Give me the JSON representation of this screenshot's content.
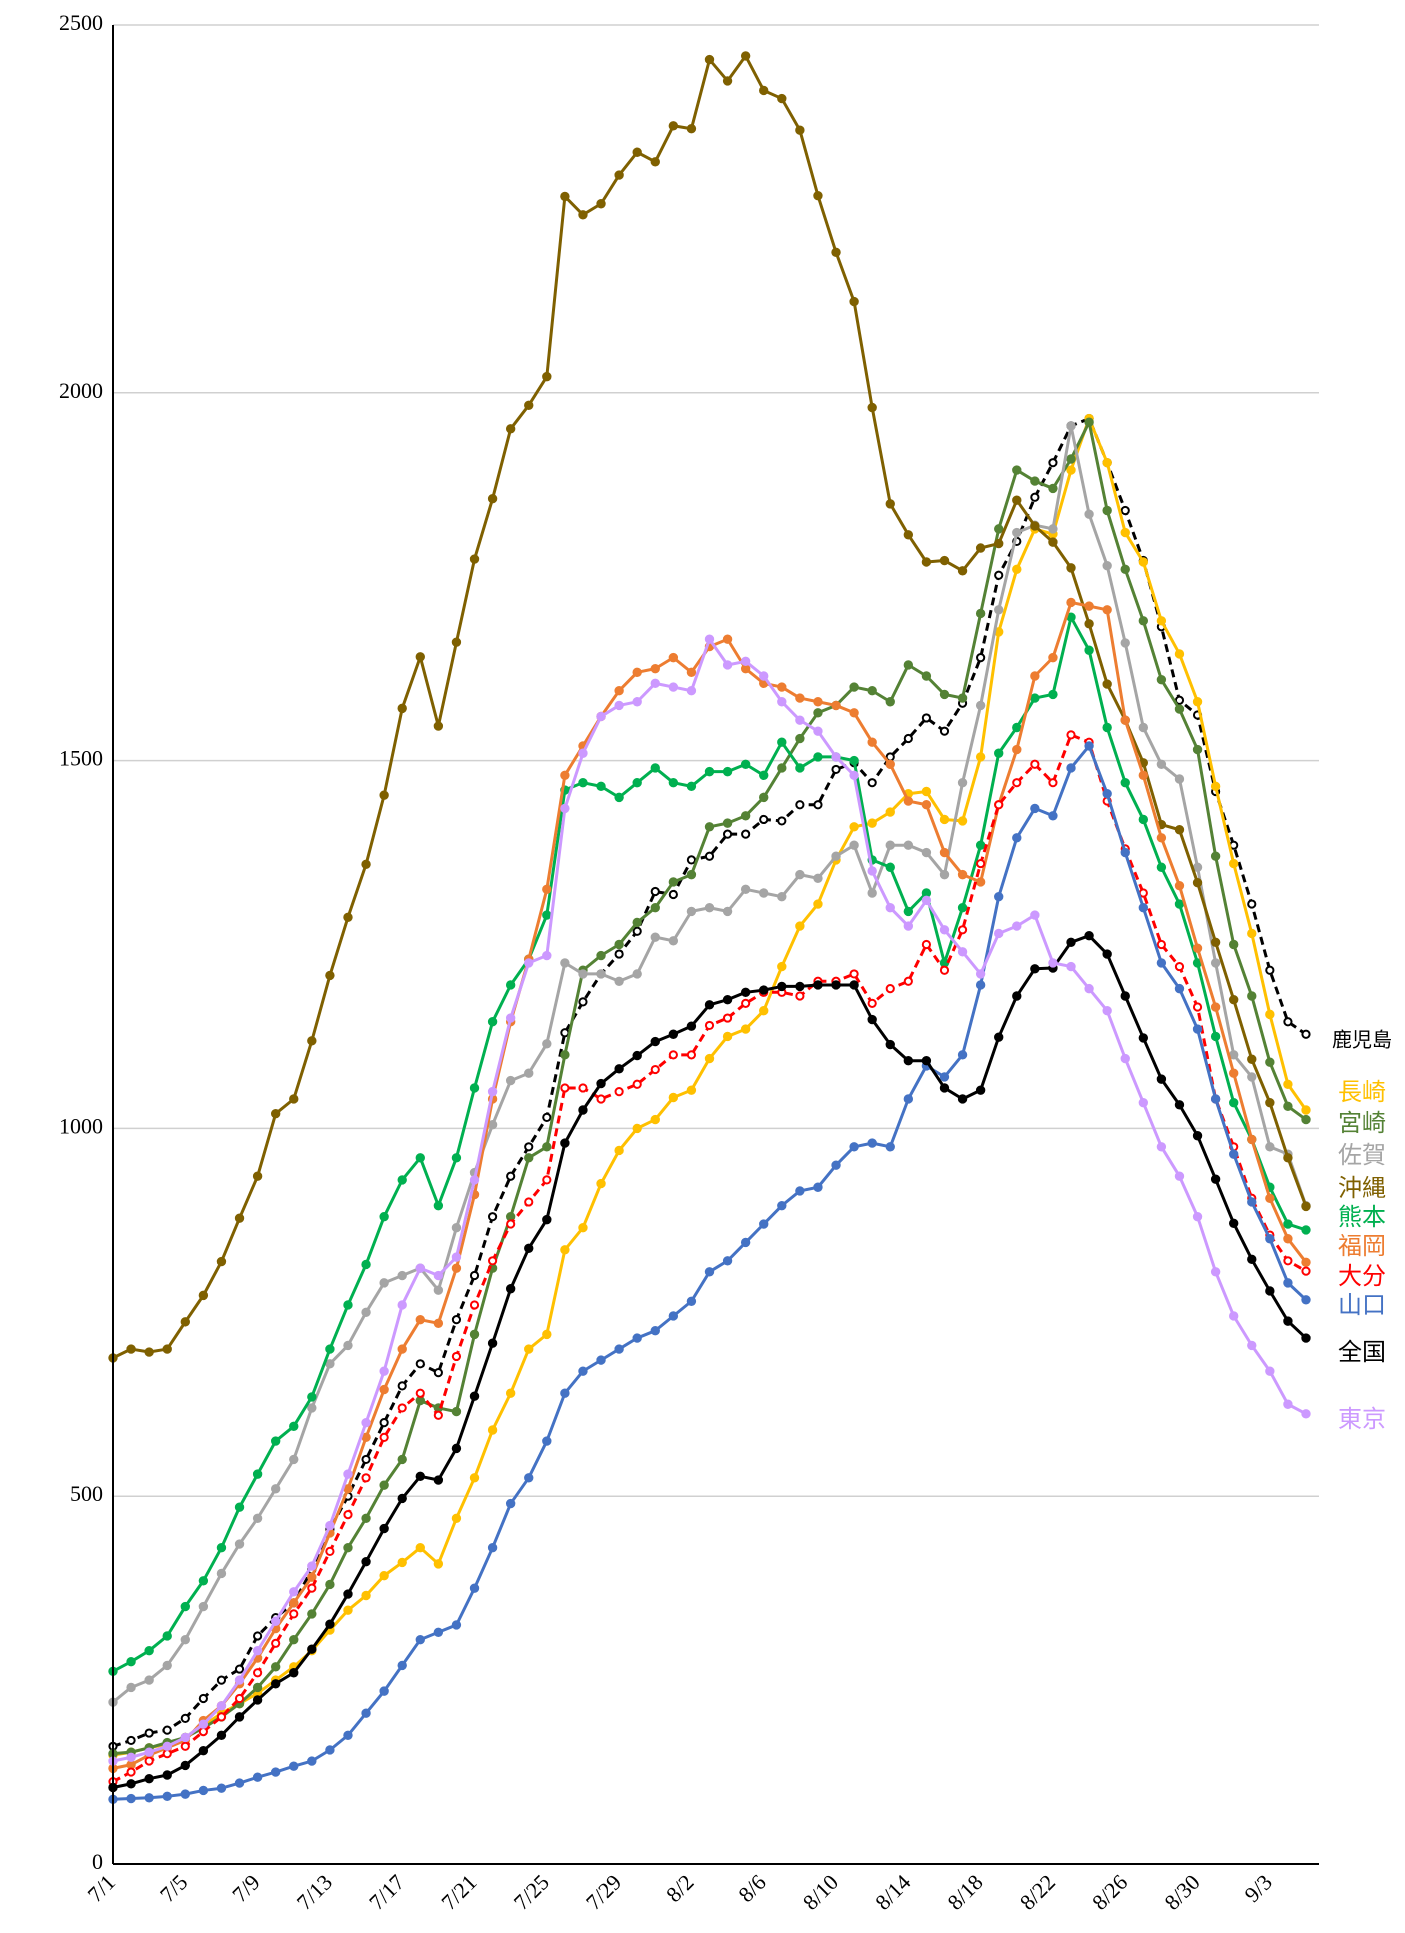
{
  "chart_data": {
    "type": "line",
    "categories": [
      "7/1",
      null,
      null,
      null,
      "7/5",
      null,
      null,
      null,
      "7/9",
      null,
      null,
      null,
      "7/13",
      null,
      null,
      null,
      "7/17",
      null,
      null,
      null,
      "7/21",
      null,
      null,
      null,
      "7/25",
      null,
      null,
      null,
      "7/29",
      null,
      null,
      null,
      "8/2",
      null,
      null,
      null,
      "8/6",
      null,
      null,
      null,
      "8/10",
      null,
      null,
      null,
      "8/14",
      null,
      null,
      null,
      "8/18",
      null,
      null,
      null,
      "8/22",
      null,
      null,
      null,
      "8/26",
      null,
      null,
      null,
      "8/30",
      null,
      null,
      null,
      "9/3",
      null,
      null
    ],
    "ylim": [
      0,
      2500
    ],
    "yticks": [
      0,
      500,
      1000,
      1500,
      2000,
      2500
    ],
    "grid": true,
    "series": [
      {
        "name": "鹿児島",
        "color": "#000000",
        "linestyle": "dashed",
        "marker": "open",
        "values": [
          160,
          168,
          178,
          182,
          198,
          225,
          250,
          265,
          310,
          335,
          355,
          400,
          455,
          500,
          550,
          600,
          650,
          680,
          668,
          740,
          800,
          880,
          935,
          975,
          1015,
          1130,
          1172,
          1210,
          1237,
          1268,
          1322,
          1318,
          1365,
          1370,
          1400,
          1400,
          1420,
          1418,
          1440,
          1440,
          1488,
          1497,
          1470,
          1505,
          1530,
          1558,
          1540,
          1578,
          1640,
          1752,
          1798,
          1858,
          1905,
          1955,
          1965,
          1905,
          1840,
          1772,
          1682,
          1582,
          1562,
          1458,
          1385,
          1305,
          1215,
          1145,
          1128
        ]
      },
      {
        "name": "長崎",
        "color": "#FFC000",
        "linestyle": "solid",
        "marker": "filled",
        "values": [
          148,
          152,
          158,
          163,
          172,
          188,
          205,
          218,
          232,
          250,
          268,
          290,
          318,
          345,
          365,
          392,
          410,
          430,
          408,
          470,
          525,
          590,
          640,
          700,
          720,
          835,
          865,
          925,
          970,
          1000,
          1012,
          1042,
          1052,
          1095,
          1125,
          1135,
          1160,
          1220,
          1275,
          1305,
          1365,
          1410,
          1415,
          1430,
          1455,
          1458,
          1420,
          1418,
          1505,
          1675,
          1760,
          1815,
          1808,
          1895,
          1965,
          1905,
          1810,
          1770,
          1690,
          1645,
          1580,
          1465,
          1360,
          1265,
          1155,
          1060,
          1025
        ]
      },
      {
        "name": "宮崎",
        "color": "#548235",
        "linestyle": "solid",
        "marker": "filled",
        "values": [
          150,
          152,
          158,
          165,
          172,
          185,
          200,
          218,
          240,
          268,
          305,
          340,
          380,
          430,
          470,
          515,
          550,
          630,
          620,
          615,
          720,
          810,
          880,
          960,
          975,
          1100,
          1215,
          1235,
          1250,
          1280,
          1300,
          1335,
          1345,
          1410,
          1415,
          1425,
          1450,
          1490,
          1530,
          1565,
          1575,
          1600,
          1595,
          1580,
          1630,
          1615,
          1590,
          1585,
          1700,
          1815,
          1895,
          1880,
          1870,
          1910,
          1960,
          1840,
          1760,
          1690,
          1610,
          1570,
          1515,
          1370,
          1250,
          1180,
          1090,
          1030,
          1012
        ]
      },
      {
        "name": "佐賀",
        "color": "#A5A5A5",
        "linestyle": "solid",
        "marker": "filled",
        "values": [
          220,
          240,
          250,
          270,
          305,
          350,
          395,
          435,
          470,
          510,
          550,
          620,
          680,
          705,
          750,
          790,
          800,
          810,
          780,
          865,
          940,
          1005,
          1065,
          1075,
          1115,
          1225,
          1210,
          1210,
          1200,
          1210,
          1260,
          1255,
          1295,
          1300,
          1295,
          1325,
          1320,
          1315,
          1345,
          1340,
          1370,
          1385,
          1320,
          1385,
          1385,
          1375,
          1345,
          1470,
          1575,
          1705,
          1810,
          1820,
          1815,
          1955,
          1835,
          1765,
          1660,
          1545,
          1495,
          1475,
          1355,
          1225,
          1100,
          1070,
          975,
          965,
          895
        ]
      },
      {
        "name": "沖縄",
        "color": "#7F6000",
        "linestyle": "solid",
        "marker": "filled",
        "values": [
          688,
          700,
          696,
          700,
          737,
          773,
          819,
          878,
          935,
          1020,
          1040,
          1119,
          1208,
          1287,
          1359,
          1453,
          1571,
          1641,
          1547,
          1661,
          1774,
          1856,
          1951,
          1983,
          2022,
          2267,
          2242,
          2257,
          2296,
          2327,
          2314,
          2363,
          2359,
          2453,
          2424,
          2458,
          2411,
          2400,
          2357,
          2268,
          2191,
          2124,
          1980,
          1849,
          1807,
          1770,
          1772,
          1758,
          1789,
          1795,
          1854,
          1819,
          1797,
          1762,
          1686,
          1604,
          1555,
          1497,
          1413,
          1406,
          1334,
          1253,
          1175,
          1094,
          1035,
          960,
          894
        ]
      },
      {
        "name": "熊本",
        "color": "#00B050",
        "linestyle": "solid",
        "marker": "filled",
        "values": [
          262,
          275,
          290,
          310,
          350,
          385,
          430,
          485,
          530,
          575,
          595,
          635,
          700,
          760,
          815,
          880,
          930,
          960,
          895,
          960,
          1055,
          1145,
          1195,
          1230,
          1290,
          1460,
          1470,
          1465,
          1450,
          1470,
          1490,
          1470,
          1465,
          1485,
          1485,
          1495,
          1480,
          1525,
          1490,
          1505,
          1505,
          1500,
          1365,
          1355,
          1295,
          1320,
          1225,
          1300,
          1385,
          1510,
          1545,
          1585,
          1590,
          1695,
          1650,
          1545,
          1470,
          1420,
          1355,
          1305,
          1225,
          1125,
          1035,
          985,
          920,
          870,
          862
        ]
      },
      {
        "name": "福岡",
        "color": "#ED7D31",
        "linestyle": "solid",
        "marker": "filled",
        "values": [
          130,
          135,
          148,
          158,
          168,
          195,
          215,
          245,
          280,
          320,
          355,
          390,
          450,
          510,
          580,
          645,
          700,
          740,
          735,
          810,
          910,
          1040,
          1145,
          1230,
          1325,
          1480,
          1520,
          1560,
          1595,
          1620,
          1625,
          1640,
          1620,
          1655,
          1665,
          1625,
          1605,
          1600,
          1585,
          1580,
          1575,
          1565,
          1525,
          1495,
          1445,
          1440,
          1375,
          1345,
          1335,
          1440,
          1515,
          1615,
          1640,
          1715,
          1710,
          1705,
          1555,
          1480,
          1395,
          1330,
          1245,
          1165,
          1075,
          985,
          905,
          850,
          818
        ]
      },
      {
        "name": "大分",
        "color": "#FF0000",
        "linestyle": "dashed",
        "marker": "open",
        "values": [
          112,
          125,
          140,
          150,
          160,
          180,
          200,
          225,
          260,
          300,
          340,
          375,
          425,
          475,
          525,
          580,
          620,
          640,
          610,
          690,
          760,
          820,
          870,
          900,
          930,
          1055,
          1055,
          1040,
          1050,
          1060,
          1080,
          1100,
          1100,
          1140,
          1150,
          1170,
          1185,
          1185,
          1180,
          1200,
          1200,
          1210,
          1170,
          1190,
          1200,
          1250,
          1215,
          1270,
          1360,
          1440,
          1470,
          1495,
          1470,
          1535,
          1525,
          1445,
          1380,
          1320,
          1250,
          1220,
          1165,
          1040,
          975,
          905,
          855,
          820,
          806
        ]
      },
      {
        "name": "山口",
        "color": "#4472C4",
        "linestyle": "solid",
        "marker": "filled",
        "values": [
          88,
          89,
          90,
          92,
          95,
          100,
          103,
          110,
          118,
          125,
          133,
          140,
          155,
          175,
          205,
          235,
          270,
          305,
          315,
          325,
          375,
          430,
          490,
          525,
          575,
          640,
          670,
          685,
          700,
          715,
          725,
          745,
          765,
          805,
          820,
          845,
          870,
          895,
          915,
          920,
          950,
          975,
          980,
          975,
          1040,
          1085,
          1070,
          1100,
          1195,
          1315,
          1395,
          1435,
          1425,
          1490,
          1520,
          1455,
          1375,
          1300,
          1225,
          1190,
          1135,
          1040,
          965,
          900,
          850,
          790,
          767
        ]
      },
      {
        "name": "全国",
        "color": "#000000",
        "linestyle": "solid",
        "marker": "filled",
        "values": [
          104,
          109,
          116,
          121,
          134,
          154,
          175,
          200,
          223,
          245,
          260,
          292,
          326,
          367,
          411,
          456,
          497,
          527,
          522,
          565,
          636,
          708,
          782,
          837,
          876,
          980,
          1025,
          1061,
          1081,
          1099,
          1118,
          1128,
          1139,
          1168,
          1175,
          1185,
          1188,
          1193,
          1193,
          1195,
          1195,
          1195,
          1148,
          1114,
          1092,
          1092,
          1055,
          1040,
          1052,
          1124,
          1180,
          1217,
          1218,
          1253,
          1262,
          1237,
          1180,
          1123,
          1067,
          1032,
          990,
          931,
          871,
          822,
          779,
          738,
          715
        ]
      },
      {
        "name": "東京",
        "color": "#CC99FF",
        "linestyle": "solid",
        "marker": "filled",
        "values": [
          140,
          145,
          152,
          160,
          172,
          190,
          215,
          250,
          290,
          330,
          370,
          405,
          460,
          530,
          600,
          670,
          760,
          810,
          800,
          825,
          930,
          1050,
          1150,
          1225,
          1235,
          1435,
          1510,
          1560,
          1575,
          1580,
          1605,
          1600,
          1595,
          1665,
          1630,
          1635,
          1615,
          1580,
          1555,
          1540,
          1505,
          1480,
          1350,
          1300,
          1275,
          1310,
          1270,
          1240,
          1210,
          1265,
          1275,
          1290,
          1225,
          1220,
          1190,
          1160,
          1095,
          1035,
          975,
          935,
          880,
          805,
          745,
          705,
          670,
          625,
          612
        ]
      }
    ]
  }
}
